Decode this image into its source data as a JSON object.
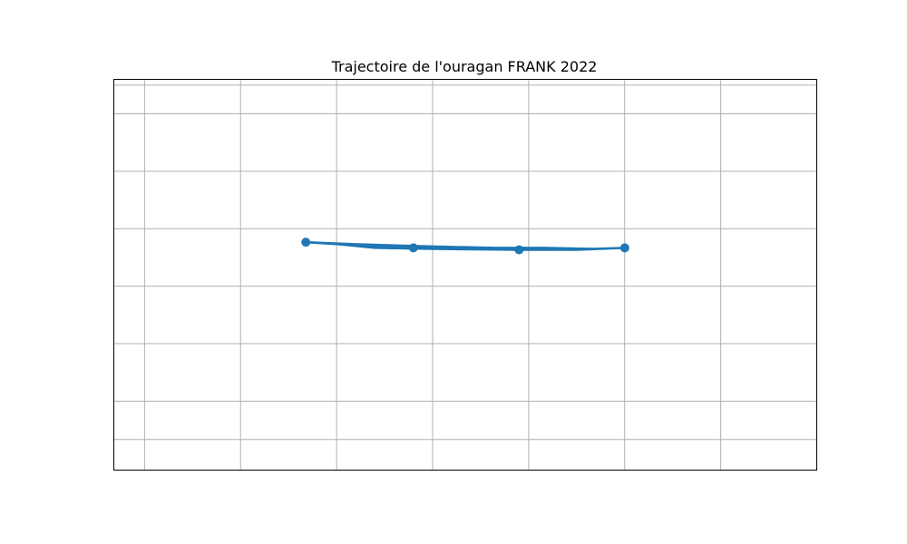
{
  "chart_data": {
    "type": "line",
    "title": "Trajectoire de l'ouragan FRANK 2022",
    "xlabel": "",
    "ylabel": "",
    "grid": true,
    "xlim": [
      -1.6,
      35
    ],
    "ylim": [
      -1.6,
      18.8
    ],
    "x_gridlines": [
      0,
      5,
      10,
      15,
      20,
      25,
      30
    ],
    "y_gridlines": [
      0,
      2,
      5,
      8,
      11,
      14,
      17,
      18.5
    ],
    "series": [
      {
        "name": "FRANK",
        "color": "#1f77b4",
        "track": [
          {
            "x": 8.4,
            "y": 10.3
          },
          {
            "x": 10.8,
            "y": 10.2
          },
          {
            "x": 13.9,
            "y": 10.1
          },
          {
            "x": 18.2,
            "y": 10.0
          },
          {
            "x": 20.8,
            "y": 10.0
          },
          {
            "x": 23.4,
            "y": 9.95
          },
          {
            "x": 25.0,
            "y": 10.0
          },
          {
            "x": 22.5,
            "y": 9.9
          },
          {
            "x": 19.5,
            "y": 9.9
          },
          {
            "x": 15.0,
            "y": 9.95
          },
          {
            "x": 12.0,
            "y": 10.0
          },
          {
            "x": 10.0,
            "y": 10.2
          },
          {
            "x": 8.4,
            "y": 10.3
          },
          {
            "x": 11.5,
            "y": 10.15
          },
          {
            "x": 14.0,
            "y": 10.0
          },
          {
            "x": 16.5,
            "y": 9.95
          },
          {
            "x": 19.5,
            "y": 9.9
          },
          {
            "x": 22.0,
            "y": 9.9
          },
          {
            "x": 25.0,
            "y": 10.0
          }
        ],
        "markers": [
          {
            "x": 8.4,
            "y": 10.3
          },
          {
            "x": 14.0,
            "y": 10.0
          },
          {
            "x": 19.5,
            "y": 9.9
          },
          {
            "x": 25.0,
            "y": 10.0
          }
        ]
      }
    ]
  }
}
